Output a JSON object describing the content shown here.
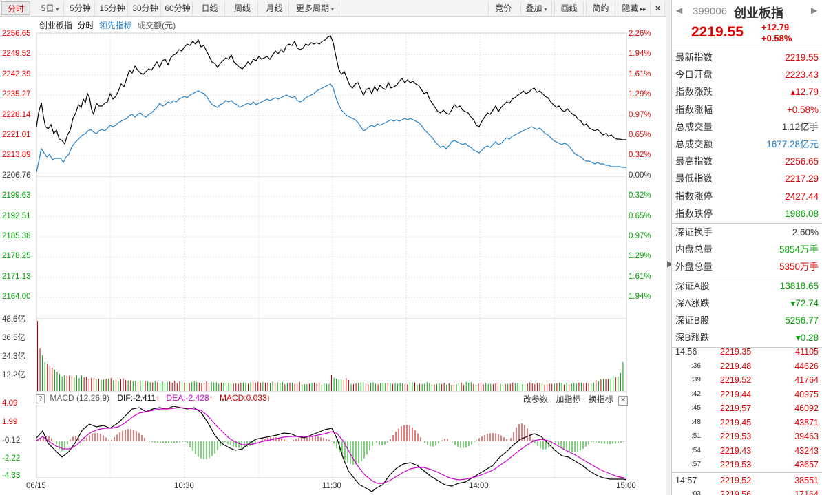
{
  "toolbar": {
    "periods": [
      {
        "label": "分时",
        "active": true
      },
      {
        "label": "5日",
        "dropdown": true
      },
      {
        "label": "5分钟"
      },
      {
        "label": "15分钟"
      },
      {
        "label": "30分钟"
      },
      {
        "label": "60分钟"
      },
      {
        "label": "日线"
      },
      {
        "label": "周线"
      },
      {
        "label": "月线"
      },
      {
        "label": "更多周期",
        "dropdown": true
      }
    ],
    "tools": [
      {
        "label": "竞价"
      },
      {
        "label": "叠加",
        "dropdown": true
      },
      {
        "label": "画线"
      },
      {
        "label": "简约"
      },
      {
        "label": "隐藏"
      }
    ],
    "hide_arrows": "▸▸",
    "close_icon": "✕"
  },
  "chart": {
    "legend": {
      "index_name": "创业板指",
      "line1": "分时",
      "line2": "领先指标",
      "volume": "成交额(元)"
    },
    "price_axis": [
      "2256.65",
      "2249.52",
      "2242.39",
      "2235.27",
      "2228.14",
      "2221.01",
      "2213.89",
      "2206.76",
      "2199.63",
      "2192.51",
      "2185.38",
      "2178.25",
      "2171.13",
      "2164.00"
    ],
    "pct_axis": [
      "2.26%",
      "1.94%",
      "1.61%",
      "1.29%",
      "0.97%",
      "0.65%",
      "0.32%",
      "0.00%",
      "0.32%",
      "0.65%",
      "0.97%",
      "1.29%",
      "1.61%",
      "1.94%"
    ],
    "volume_axis": [
      "48.6亿",
      "36.5亿",
      "24.3亿",
      "12.2亿"
    ],
    "macd": {
      "title": "MACD (12,26,9)",
      "dif": "DIF:-2.411",
      "dea": "DEA:-2.428",
      "macd": "MACD:0.033",
      "up_arrow": "↑",
      "buttons": [
        "改参数",
        "加指标",
        "换指标"
      ],
      "axis": [
        "4.09",
        "1.99",
        "-0.12",
        "-2.22",
        "-4.33"
      ],
      "settings_icon": "?"
    },
    "time_axis": [
      "06/15",
      "10:30",
      "11:30",
      "14:00",
      "15:00"
    ],
    "colors": {
      "price_line": "#000000",
      "lead_line": "#1e7ec8",
      "dea_line": "#d000d0",
      "up": "#c00000",
      "down": "#00a000"
    }
  },
  "quote": {
    "code": "399006",
    "name": "创业板指",
    "price": "2219.55",
    "change": "+12.79",
    "change_pct": "+0.58%",
    "nav_left": "◀",
    "nav_right": "▶"
  },
  "stats": [
    {
      "label": "最新指数",
      "value": "2219.55",
      "color": "red"
    },
    {
      "label": "今日开盘",
      "value": "2223.43",
      "color": "red"
    },
    {
      "label": "指数涨跌",
      "value": "▴12.79",
      "color": "red"
    },
    {
      "label": "指数涨幅",
      "value": "+0.58%",
      "color": "red"
    },
    {
      "label": "总成交量",
      "value": "1.12亿手",
      "color": "black"
    },
    {
      "label": "总成交额",
      "value": "1677.28亿元",
      "color": "blue"
    },
    {
      "label": "最高指数",
      "value": "2256.65",
      "color": "red"
    },
    {
      "label": "最低指数",
      "value": "2217.29",
      "color": "red"
    },
    {
      "label": "指数涨停",
      "value": "2427.44",
      "color": "red"
    },
    {
      "label": "指数跌停",
      "value": "1986.08",
      "color": "green"
    }
  ],
  "stats2": [
    {
      "label": "深证换手",
      "value": "2.60%",
      "color": "black"
    },
    {
      "label": "内盘总量",
      "value": "5854万手",
      "color": "green"
    },
    {
      "label": "外盘总量",
      "value": "5350万手",
      "color": "red"
    }
  ],
  "stats3": [
    {
      "label": "深证A股",
      "value": "13818.65",
      "color": "green"
    },
    {
      "label": "深A涨跌",
      "value": "▾72.74",
      "color": "green"
    },
    {
      "label": "深证B股",
      "value": "5256.77",
      "color": "green"
    },
    {
      "label": "深B涨跌",
      "value": "▾0.28",
      "color": "green"
    }
  ],
  "ticks": [
    {
      "time": "14:56",
      "price": "2219.35",
      "vol": "41105"
    },
    {
      "time": ":36",
      "price": "2219.48",
      "vol": "44626"
    },
    {
      "time": ":39",
      "price": "2219.52",
      "vol": "41764"
    },
    {
      "time": ":42",
      "price": "2219.44",
      "vol": "40975"
    },
    {
      "time": ":45",
      "price": "2219.57",
      "vol": "46092"
    },
    {
      "time": ":48",
      "price": "2219.45",
      "vol": "43871"
    },
    {
      "time": ":51",
      "price": "2219.53",
      "vol": "39463"
    },
    {
      "time": ":54",
      "price": "2219.43",
      "vol": "43243"
    },
    {
      "time": ":57",
      "price": "2219.53",
      "vol": "43657"
    },
    {
      "time": "14:57",
      "price": "2219.52",
      "vol": "38551"
    },
    {
      "time": ":03",
      "price": "2219.56",
      "vol": "17164"
    }
  ]
}
